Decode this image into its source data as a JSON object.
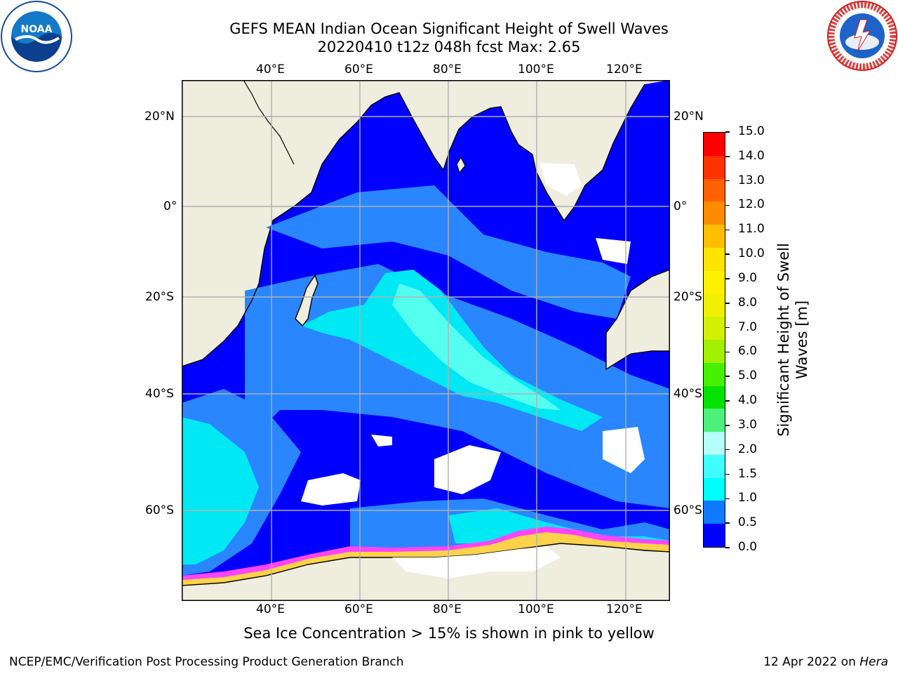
{
  "title_line1": "GEFS MEAN Indian Ocean Significant Height of Swell Waves",
  "title_line2": "20220410 t12z 048h fcst   Max: 2.65",
  "map": {
    "top_lon_labels": [
      "40°E",
      "60°E",
      "80°E",
      "100°E",
      "120°E"
    ],
    "bottom_lon_labels": [
      "40°E",
      "60°E",
      "80°E",
      "100°E",
      "120°E"
    ],
    "left_lat_labels": [
      "20°N",
      "0°",
      "20°S",
      "40°S",
      "60°S"
    ],
    "right_lat_labels": [
      "20°N",
      "0°",
      "20°S",
      "40°S",
      "60°S"
    ],
    "colors": {
      "land": "#efedde",
      "deep_blue": "#0000ff",
      "mid_blue": "#2a86ff",
      "light_cyan": "#00e8f4",
      "pale_cyan": "#55fff0",
      "ice_pink": "#ff44ff",
      "ice_yellow": "#ffd24a",
      "white": "#ffffff"
    }
  },
  "colorbar": {
    "label": "Significant Height of Swell Waves [m]",
    "ticks": [
      "15.0",
      "14.0",
      "13.0",
      "12.0",
      "11.0",
      "10.0",
      "9.0",
      "8.0",
      "7.0",
      "6.0",
      "5.0",
      "4.0",
      "3.0",
      "2.0",
      "1.5",
      "1.0",
      "0.5",
      "0.0"
    ],
    "bands": [
      "#0000ff",
      "#0f7aff",
      "#00ffff",
      "#40ffff",
      "#b4fffa",
      "#4cf07a",
      "#00e400",
      "#45f000",
      "#a0f000",
      "#d2f000",
      "#f0f000",
      "#fff000",
      "#ffe400",
      "#ffbe00",
      "#ff8c00",
      "#ff6000",
      "#ff3200",
      "#ff0000"
    ]
  },
  "caption": "Sea Ice Concentration > 15% is shown in pink to yellow",
  "footer_left": "NCEP/EMC/Verification Post Processing Product Generation Branch",
  "footer_right_date": "12 Apr 2022 on ",
  "footer_right_machine": "Hera",
  "logos": {
    "noaa_text": "NOAA",
    "nws_text": "NATIONAL WEATHER SERVICE"
  }
}
